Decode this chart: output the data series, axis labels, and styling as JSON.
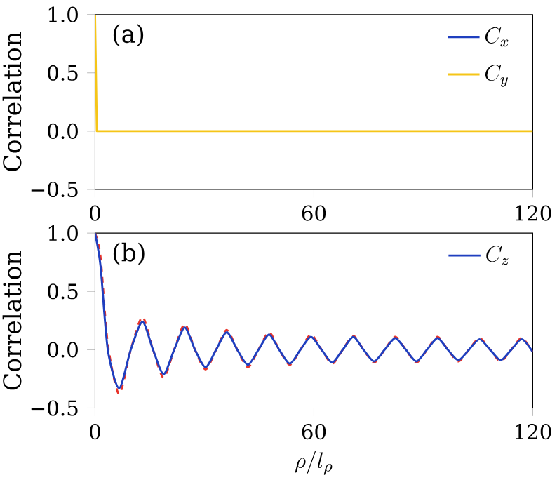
{
  "chart_data": [
    {
      "type": "line",
      "ylabel": "Correlation",
      "annotations": [
        "(a)"
      ],
      "xlim": [
        0,
        120
      ],
      "ylim": [
        -0.5,
        1.0
      ],
      "xticks": [
        0,
        60,
        120
      ],
      "yticks": [
        {
          "value": -0.5,
          "label": "−0.5"
        },
        {
          "value": 0.0,
          "label": "0.0"
        },
        {
          "value": 0.5,
          "label": "0.5"
        },
        {
          "value": 1.0,
          "label": "1.0"
        }
      ],
      "legend": "top right",
      "grid": false,
      "series": [
        {
          "name": "C_x",
          "color": "#1f3fbf",
          "values": [
            null
          ]
        },
        {
          "name": "C_y",
          "color": "#f5c518",
          "x": [
            0,
            0.5,
            120
          ],
          "values": [
            1.0,
            0.0,
            0.0
          ]
        }
      ]
    },
    {
      "type": "line",
      "ylabel": "Correlation",
      "xlabel": "\\rho/l_\\rho",
      "annotations": [
        "(b)"
      ],
      "xlim": [
        0,
        120
      ],
      "ylim": [
        -0.5,
        1.0
      ],
      "xticks": [
        0,
        60,
        120
      ],
      "yticks": [
        {
          "value": -0.5,
          "label": "−0.5"
        },
        {
          "value": 0.0,
          "label": "0.0"
        },
        {
          "value": 0.5,
          "label": "0.5"
        },
        {
          "value": 1.0,
          "label": "1.0"
        }
      ],
      "legend": "top right",
      "grid": false,
      "series": [
        {
          "color": "#e8332a",
          "line_style": "dashed",
          "x": [
            0,
            1.5,
            3.5,
            6.6,
            9.8,
            13.0,
            15.9,
            18.8,
            21.7,
            24.6,
            27.4,
            30.3,
            33.2,
            36.1,
            39.0,
            41.9,
            44.8,
            47.7,
            50.5,
            53.4,
            56.3,
            59.2,
            62.1,
            65.0,
            67.9,
            70.8,
            73.6,
            76.5,
            79.4,
            82.3,
            85.2,
            88.1,
            91.0,
            93.9,
            96.7,
            99.6,
            102.5,
            105.4,
            108.3,
            111.2,
            114.1,
            117.0,
            120
          ],
          "values": [
            1.0,
            0.8,
            0.05,
            -0.38,
            0.0,
            0.28,
            0.0,
            -0.24,
            0.0,
            0.22,
            0.0,
            -0.17,
            0.0,
            0.17,
            0.0,
            -0.15,
            0.0,
            0.15,
            0.0,
            -0.13,
            0.0,
            0.13,
            0.0,
            -0.12,
            0.0,
            0.12,
            0.0,
            -0.11,
            0.0,
            0.11,
            0.0,
            -0.11,
            0.0,
            0.11,
            0.0,
            -0.1,
            0.0,
            0.1,
            0.0,
            -0.1,
            0.0,
            0.1,
            -0.02
          ]
        },
        {
          "name": "C_z",
          "color": "#1f3fbf",
          "line_style": "solid",
          "x": [
            0,
            1.5,
            3.5,
            6.6,
            9.8,
            13.0,
            15.9,
            18.8,
            21.7,
            24.6,
            27.4,
            30.3,
            33.2,
            36.1,
            39.0,
            41.9,
            44.8,
            47.7,
            50.5,
            53.4,
            56.3,
            59.2,
            62.1,
            65.0,
            67.9,
            70.8,
            73.6,
            76.5,
            79.4,
            82.3,
            85.2,
            88.1,
            91.0,
            93.9,
            96.7,
            99.6,
            102.5,
            105.4,
            108.3,
            111.2,
            114.1,
            117.0,
            120
          ],
          "values": [
            1.0,
            0.72,
            0.0,
            -0.33,
            0.0,
            0.24,
            0.0,
            -0.21,
            0.0,
            0.19,
            0.0,
            -0.15,
            0.0,
            0.15,
            0.0,
            -0.13,
            0.0,
            0.13,
            0.0,
            -0.12,
            0.0,
            0.11,
            0.0,
            -0.11,
            0.0,
            0.11,
            0.0,
            -0.1,
            0.0,
            0.1,
            0.0,
            -0.1,
            0.0,
            0.1,
            0.0,
            -0.09,
            0.0,
            0.09,
            0.0,
            -0.09,
            0.0,
            0.09,
            -0.02
          ]
        }
      ]
    }
  ]
}
